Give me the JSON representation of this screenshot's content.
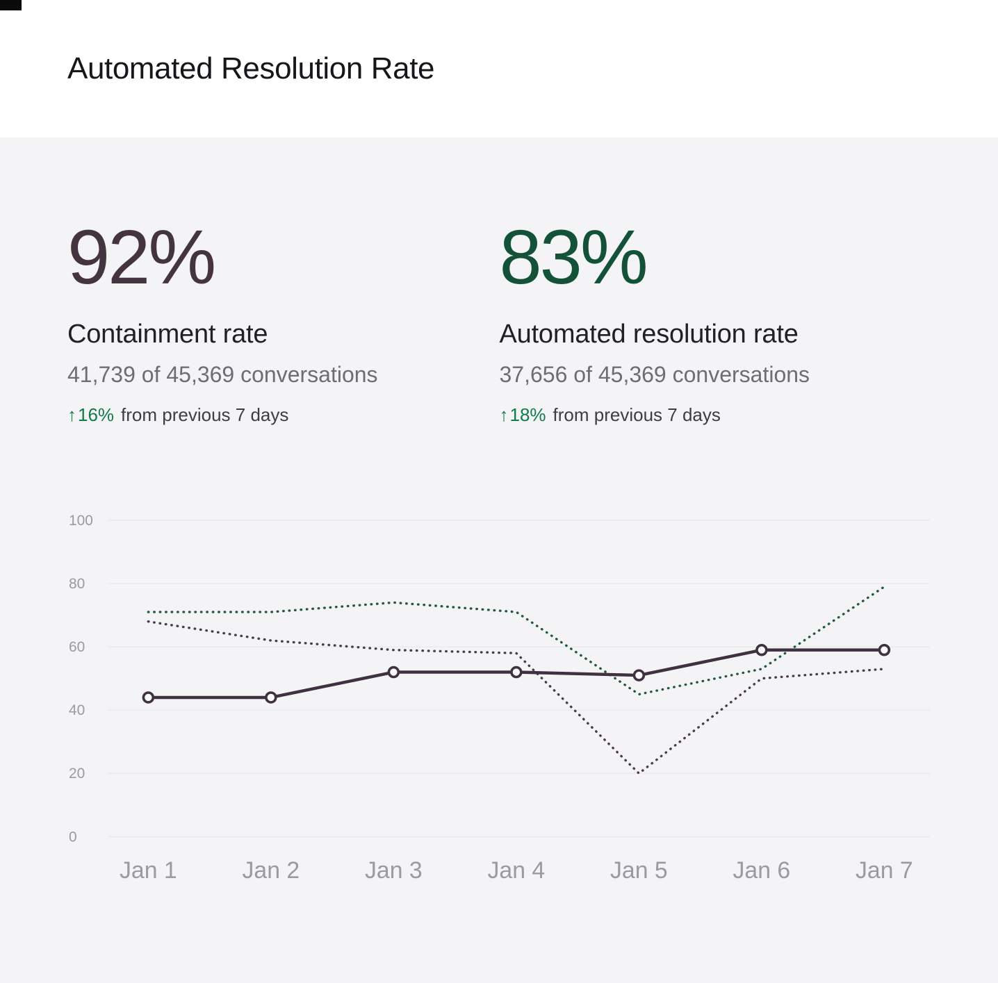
{
  "header": {
    "title": "Automated Resolution Rate"
  },
  "stats": [
    {
      "value": "92%",
      "label": "Containment rate",
      "detail": "41,739 of 45,369 conversations",
      "arrow": "↑",
      "change": "16%",
      "change_suffix": "from previous 7 days",
      "value_color": "#443440",
      "change_color": "#0e7c47"
    },
    {
      "value": "83%",
      "label": "Automated resolution rate",
      "detail": "37,656 of 45,369 conversations",
      "arrow": "↑",
      "change": "18%",
      "change_suffix": "from previous 7 days",
      "value_color": "#135239",
      "change_color": "#0e7c47"
    }
  ],
  "chart_data": {
    "type": "line",
    "categories": [
      "Jan 1",
      "Jan 2",
      "Jan 3",
      "Jan 4",
      "Jan 5",
      "Jan 6",
      "Jan 7"
    ],
    "series": [
      {
        "name": "dotted-dark",
        "style": "dotted",
        "markers": false,
        "color": "#4b3a49",
        "values": [
          68,
          62,
          59,
          58,
          20,
          50,
          53
        ]
      },
      {
        "name": "dotted-green",
        "style": "dotted",
        "markers": false,
        "color": "#20593c",
        "values": [
          71,
          71,
          74,
          71,
          45,
          53,
          79
        ]
      },
      {
        "name": "solid-dark",
        "style": "solid",
        "markers": true,
        "color": "#403140",
        "values": [
          44,
          44,
          52,
          52,
          51,
          59,
          59
        ]
      }
    ],
    "ylim": [
      0,
      100
    ],
    "yticks": [
      0,
      20,
      40,
      60,
      80,
      100
    ],
    "grid": true,
    "legend": "none",
    "colors": {
      "grid": "#e8e7ea",
      "axis_label": "#9b99a2",
      "marker_fill": "#fbfafb"
    }
  }
}
